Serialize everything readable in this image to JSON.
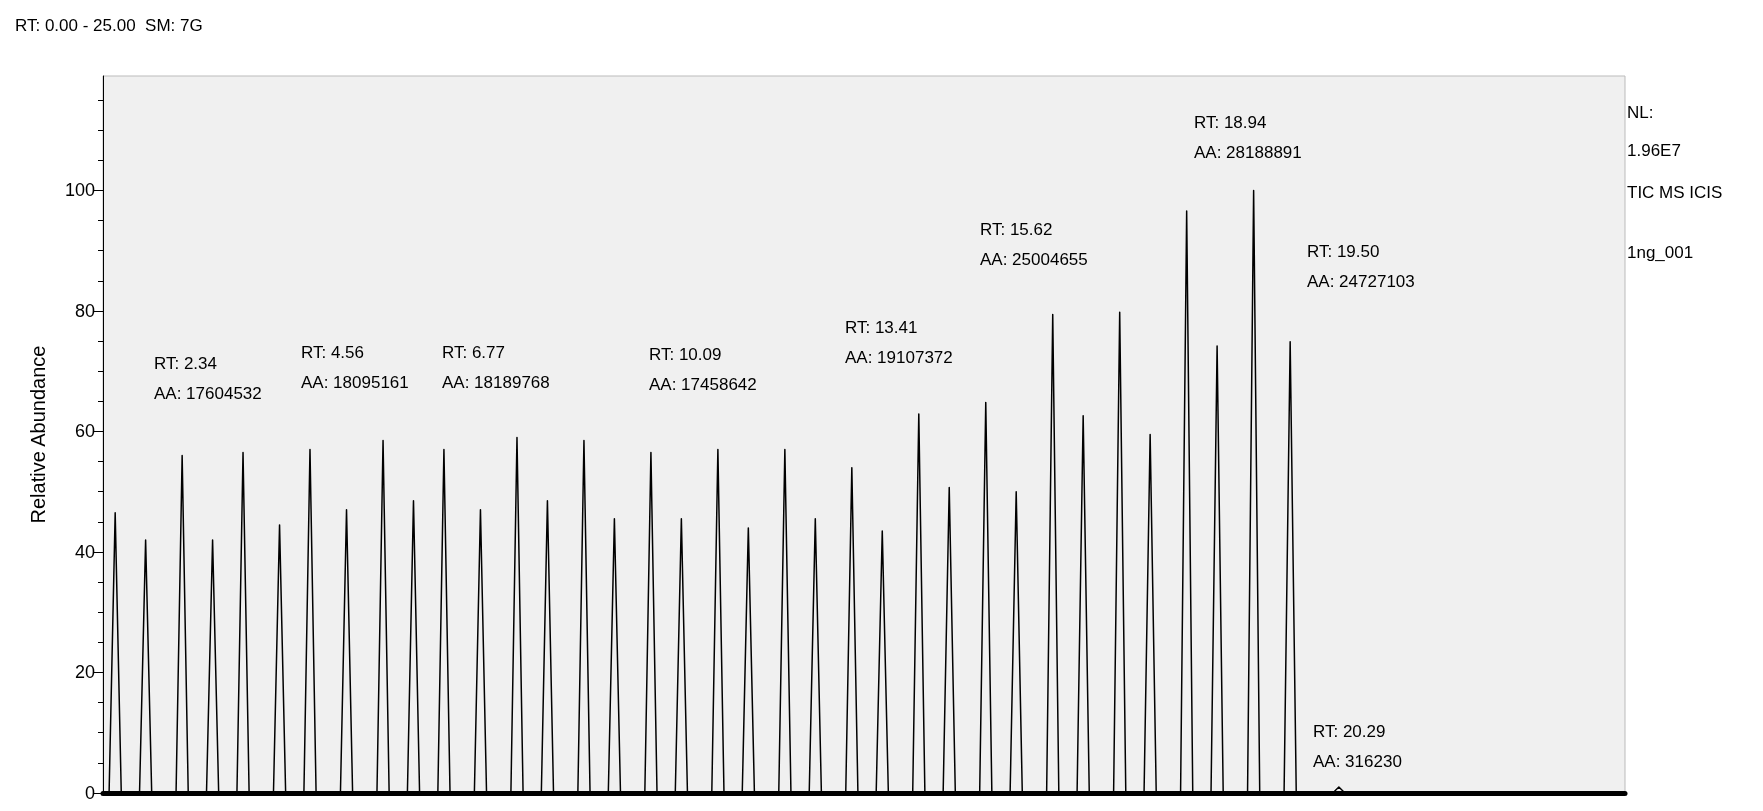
{
  "chart_data": {
    "type": "line",
    "title": "RT: 0.00 - 25.00  SM: 7G",
    "ylabel": "Relative Abundance",
    "categories": [
      null,
      null,
      null,
      null,
      null,
      null,
      null,
      null,
      null,
      null,
      null,
      null,
      null,
      null,
      null,
      null,
      null,
      null,
      null,
      null,
      null,
      null,
      null,
      null,
      null,
      null,
      null,
      null,
      null,
      null,
      null,
      null,
      null,
      null,
      null,
      null,
      null,
      null,
      null,
      null,
      null,
      null,
      null,
      null,
      null,
      null,
      null,
      null,
      null,
      null,
      null,
      null,
      null,
      null,
      null,
      null,
      null,
      null,
      null,
      null,
      null,
      null,
      null,
      null,
      null,
      null,
      null,
      null,
      null,
      null,
      null,
      null,
      null,
      null,
      null,
      null,
      null,
      null,
      null,
      null,
      null,
      null,
      null,
      null,
      null,
      null,
      null,
      null,
      null,
      null,
      null,
      null,
      null,
      null,
      null,
      null,
      null,
      null,
      null,
      null,
      null,
      null,
      null,
      null,
      null,
      null,
      null,
      null,
      null,
      null,
      null,
      null,
      null,
      null,
      null,
      null,
      null,
      null,
      null,
      null,
      null,
      null,
      null,
      null,
      null,
      null,
      null,
      null,
      null,
      null,
      null,
      null,
      null,
      null,
      null,
      null,
      null,
      null,
      null,
      null,
      null,
      null,
      null,
      null,
      null,
      null,
      null,
      null,
      null,
      null,
      null,
      null,
      null,
      null,
      null,
      null,
      null,
      null,
      null,
      null,
      null,
      null,
      null,
      null,
      null,
      null,
      null,
      null,
      null,
      null,
      null,
      null,
      null,
      null,
      null,
      null,
      null,
      null,
      null,
      null,
      null,
      null,
      null,
      null,
      null,
      null,
      null,
      null,
      null,
      null,
      null,
      null,
      null,
      null,
      null,
      null,
      null,
      null,
      null,
      null,
      null,
      null,
      null,
      null,
      null,
      null,
      null,
      null,
      null,
      null,
      null,
      null,
      null,
      null,
      null,
      null,
      null,
      null,
      null,
      null,
      null,
      null,
      null,
      null,
      null,
      null,
      null,
      null,
      null,
      null,
      null,
      null,
      null,
      null,
      null,
      null,
      null,
      null,
      null,
      null,
      null,
      null,
      null,
      null,
      null,
      null,
      null,
      null,
      null,
      null,
      null
    ],
    "values": [
      0,
      0,
      46.5,
      0,
      0,
      0,
      0,
      42,
      0,
      0,
      0,
      0,
      0,
      56,
      0,
      0,
      0,
      0,
      42,
      0,
      0,
      0,
      0,
      56.5,
      0,
      0,
      0,
      0,
      0,
      44.5,
      0,
      0,
      0,
      0,
      57,
      0,
      0,
      0,
      0,
      0,
      47,
      0,
      0,
      0,
      0,
      0,
      58.5,
      0,
      0,
      0,
      0,
      48.5,
      0,
      0,
      0,
      0,
      57,
      0,
      0,
      0,
      0,
      0,
      47,
      0,
      0,
      0,
      0,
      0,
      59,
      0,
      0,
      0,
      0,
      48.5,
      0,
      0,
      0,
      0,
      0,
      58.5,
      0,
      0,
      0,
      0,
      45.5,
      0,
      0,
      0,
      0,
      0,
      56.5,
      0,
      0,
      0,
      0,
      45.5,
      0,
      0,
      0,
      0,
      0,
      57,
      0,
      0,
      0,
      0,
      44,
      0,
      0,
      0,
      0,
      0,
      57,
      0,
      0,
      0,
      0,
      45.5,
      0,
      0,
      0,
      0,
      0,
      54,
      0,
      0,
      0,
      0,
      43.5,
      0,
      0,
      0,
      0,
      0,
      62.9,
      0,
      0,
      0,
      0,
      50.7,
      0,
      0,
      0,
      0,
      0,
      64.8,
      0,
      0,
      0,
      0,
      50,
      0,
      0,
      0,
      0,
      0,
      79.4,
      0,
      0,
      0,
      0,
      62.6,
      0,
      0,
      0,
      0,
      0,
      79.8,
      0,
      0,
      0,
      0,
      59.5,
      0,
      0,
      0,
      0,
      0,
      96.6,
      0,
      0,
      0,
      0,
      74.2,
      0,
      0,
      0,
      0,
      0,
      100,
      0,
      0,
      0,
      0,
      0,
      74.9,
      0,
      0,
      0,
      0,
      0,
      0,
      0,
      1,
      0,
      0,
      0,
      0,
      0,
      0,
      0,
      0,
      0,
      0,
      0,
      0,
      0,
      0,
      0,
      0,
      0,
      0,
      0,
      0,
      0,
      0,
      0,
      0,
      0,
      0,
      0,
      0,
      0,
      0,
      0,
      0,
      0,
      0,
      0,
      0,
      0,
      0,
      0,
      0,
      0,
      0,
      0,
      0,
      0,
      0,
      0
    ],
    "color": "#000000",
    "ylim": [
      0,
      119
    ],
    "yticks": [
      0,
      20,
      40,
      60,
      80,
      100
    ],
    "tick_labels": "y",
    "grid": false,
    "line_style": "solid",
    "annotations": [
      "RT: 2.34\nAA: 17604532",
      "RT: 4.56\nAA: 18095161",
      "RT: 6.77\nAA: 18189768",
      "RT: 10.09\nAA: 17458642",
      "RT: 13.41\nAA: 19107372",
      "RT: 15.62\nAA: 25004655",
      "RT: 18.94\nAA: 28188891",
      "RT: 19.50\nAA: 24727103",
      "RT: 20.29\nAA: 316230",
      "NL:\n1.96E7",
      "TIC MS ICIS",
      "1ng_001"
    ]
  }
}
